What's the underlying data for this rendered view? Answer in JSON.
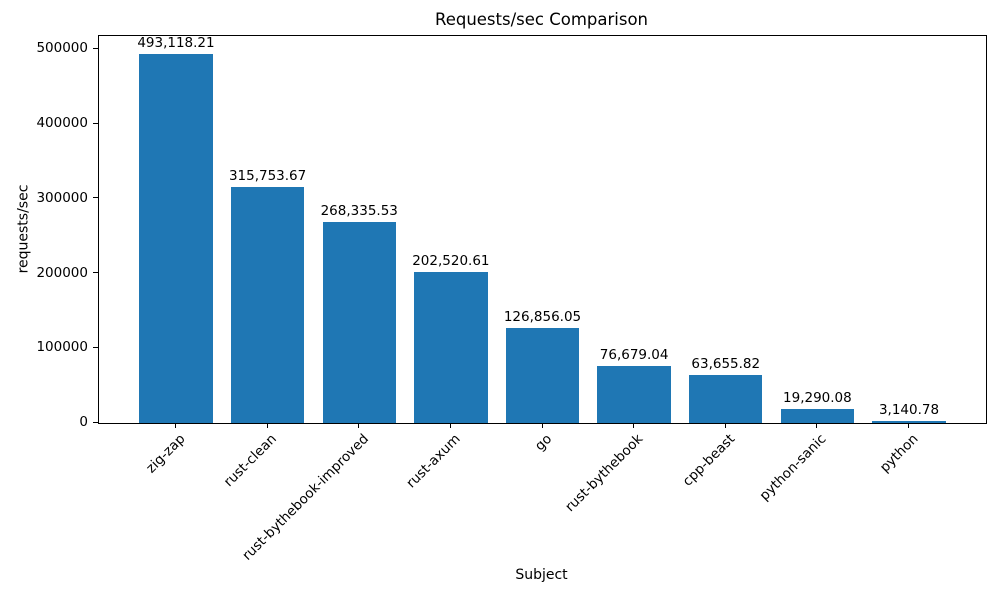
{
  "chart_data": {
    "type": "bar",
    "title": "Requests/sec Comparison",
    "xlabel": "Subject",
    "ylabel": "requests/sec",
    "categories": [
      "zig-zap",
      "rust-clean",
      "rust-bythebook-improved",
      "rust-axum",
      "go",
      "rust-bythebook",
      "cpp-beast",
      "python-sanic",
      "python"
    ],
    "values": [
      493118.21,
      315753.67,
      268335.53,
      202520.61,
      126856.05,
      76679.04,
      63655.82,
      19290.08,
      3140.78
    ],
    "value_labels": [
      "493,118.21",
      "315,753.67",
      "268,335.53",
      "202,520.61",
      "126,856.05",
      "76,679.04",
      "63,655.82",
      "19,290.08",
      "3,140.78"
    ],
    "yticks": [
      0,
      100000,
      200000,
      300000,
      400000,
      500000
    ],
    "ytick_labels": [
      "0",
      "100000",
      "200000",
      "300000",
      "400000",
      "500000"
    ],
    "ylim": [
      0,
      517774
    ],
    "bar_color": "#1f77b4",
    "frame_color": "#000000",
    "grid": false,
    "legend_position": "none"
  }
}
